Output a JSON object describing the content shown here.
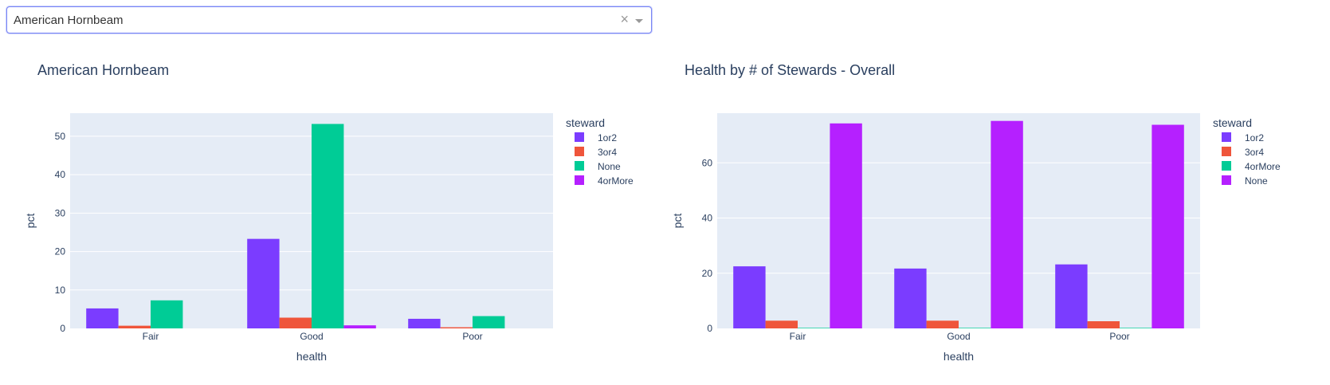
{
  "dropdown": {
    "selected": "American Hornbeam",
    "clear_glyph": "×"
  },
  "chart_data": [
    {
      "type": "bar",
      "title": "American Hornbeam",
      "xlabel": "health",
      "ylabel": "pct",
      "categories": [
        "Fair",
        "Good",
        "Poor"
      ],
      "ylim": [
        0,
        56
      ],
      "yticks": [
        0,
        10,
        20,
        30,
        40,
        50
      ],
      "legend_title": "steward",
      "legend_position": "right",
      "series": [
        {
          "name": "1or2",
          "color": "#7b3cff",
          "values": [
            5.2,
            23.3,
            2.5
          ]
        },
        {
          "name": "3or4",
          "color": "#ef553b",
          "values": [
            0.7,
            2.8,
            0.3
          ]
        },
        {
          "name": "None",
          "color": "#00cc96",
          "values": [
            7.3,
            53.2,
            3.2
          ]
        },
        {
          "name": "4orMore",
          "color": "#b520ff",
          "values": [
            0.0,
            0.8,
            0.0
          ]
        }
      ]
    },
    {
      "type": "bar",
      "title": "Health by # of Stewards - Overall",
      "xlabel": "health",
      "ylabel": "pct",
      "categories": [
        "Fair",
        "Good",
        "Poor"
      ],
      "ylim": [
        0,
        78
      ],
      "yticks": [
        0,
        20,
        40,
        60
      ],
      "legend_title": "steward",
      "legend_position": "right",
      "series": [
        {
          "name": "1or2",
          "color": "#7b3cff",
          "values": [
            22.5,
            21.7,
            23.2
          ]
        },
        {
          "name": "3or4",
          "color": "#ef553b",
          "values": [
            2.8,
            2.8,
            2.6
          ]
        },
        {
          "name": "4orMore",
          "color": "#00cc96",
          "values": [
            0.2,
            0.2,
            0.2
          ]
        },
        {
          "name": "None",
          "color": "#b520ff",
          "values": [
            74.3,
            75.2,
            73.8
          ]
        }
      ]
    }
  ]
}
